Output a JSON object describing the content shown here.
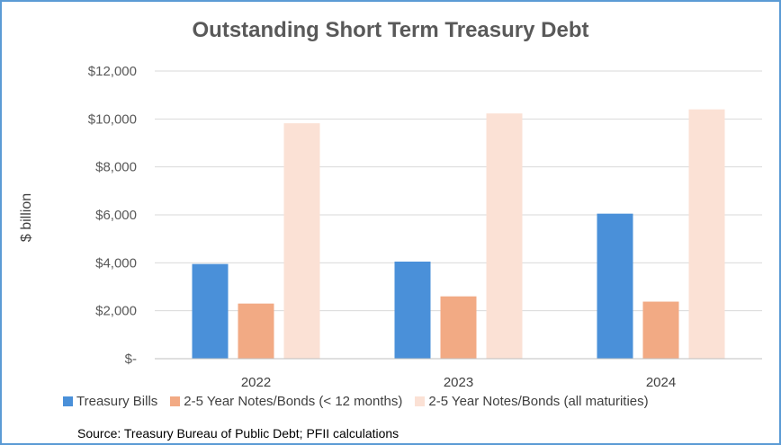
{
  "chart_data": {
    "type": "bar",
    "title": "Outstanding  Short Term Treasury Debt",
    "ylabel": "$ billion",
    "xlabel": "",
    "categories": [
      "2022",
      "2023",
      "2024"
    ],
    "ylim": [
      0,
      12000
    ],
    "y_ticks": [
      {
        "value": 0,
        "label": "$-"
      },
      {
        "value": 2000,
        "label": "$2,000"
      },
      {
        "value": 4000,
        "label": "$4,000"
      },
      {
        "value": 6000,
        "label": "$6,000"
      },
      {
        "value": 8000,
        "label": "$8,000"
      },
      {
        "value": 10000,
        "label": "$10,000"
      },
      {
        "value": 12000,
        "label": "$12,000"
      }
    ],
    "grid": true,
    "legend_position": "bottom",
    "series": [
      {
        "name": "Treasury Bills",
        "color": "#4a90d9",
        "values": [
          3950,
          4050,
          6050
        ]
      },
      {
        "name": "2-5 Year Notes/Bonds (< 12  months)",
        "color": "#f2aa84",
        "values": [
          2300,
          2600,
          2380
        ]
      },
      {
        "name": "2-5 Year Notes/Bonds (all maturities)",
        "color": "#fbe1d5",
        "values": [
          9820,
          10230,
          10400
        ]
      }
    ]
  },
  "source": "Source:  Treasury Bureau of Public Debt; PFII calculations"
}
